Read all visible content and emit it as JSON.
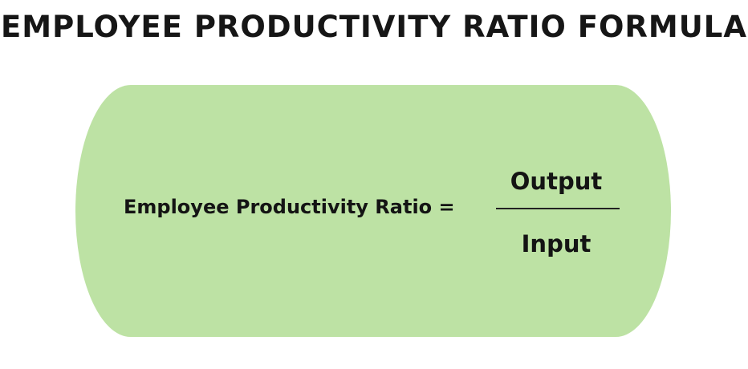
{
  "title": "EMPLOYEE PRODUCTIVITY RATIO FORMULA",
  "formula": {
    "lhs": "Employee Productivity Ratio =",
    "numerator": "Output",
    "denominator": "Input"
  },
  "colors": {
    "box_fill": "#bde2a4",
    "text": "#141414",
    "background": "#ffffff"
  }
}
